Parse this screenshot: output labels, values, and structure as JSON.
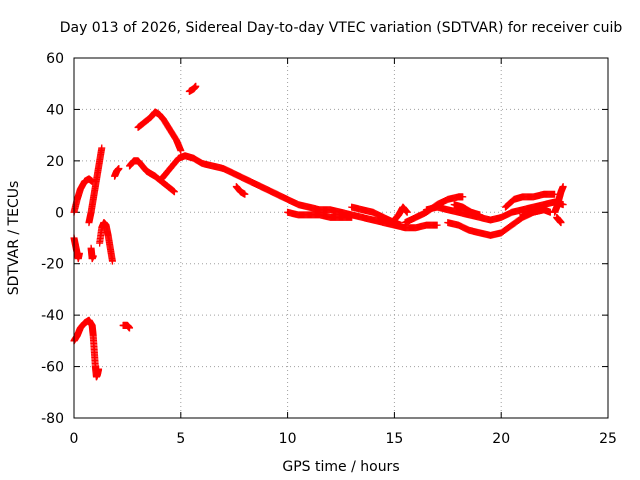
{
  "chart_data": {
    "type": "scatter",
    "title": "Day 013 of 2026, Sidereal Day-to-day VTEC variation (SDTVAR) for receiver cuib",
    "xlabel": "GPS time / hours",
    "ylabel": "SDTVAR / TECUs",
    "xlim": [
      0,
      25
    ],
    "ylim": [
      -80,
      60
    ],
    "xticks": [
      0,
      5,
      10,
      15,
      20,
      25
    ],
    "yticks": [
      -80,
      -60,
      -40,
      -20,
      0,
      20,
      40,
      60
    ],
    "grid": true,
    "marker": "plus",
    "series": [
      {
        "name": "SDTVAR",
        "color": "#ff0000",
        "segments": [
          [
            [
              0.0,
              0
            ],
            [
              0.15,
              5
            ],
            [
              0.3,
              9
            ],
            [
              0.5,
              12
            ],
            [
              0.7,
              13
            ],
            [
              0.85,
              12
            ]
          ],
          [
            [
              0.0,
              -10
            ],
            [
              0.1,
              -14
            ],
            [
              0.2,
              -18
            ],
            [
              0.25,
              -16
            ]
          ],
          [
            [
              0.0,
              -50
            ],
            [
              0.15,
              -48
            ],
            [
              0.3,
              -45
            ],
            [
              0.5,
              -43
            ],
            [
              0.7,
              -42
            ],
            [
              0.85,
              -44
            ],
            [
              0.9,
              -48
            ],
            [
              0.95,
              -54
            ],
            [
              1.0,
              -60
            ],
            [
              1.05,
              -64
            ],
            [
              1.1,
              -63
            ],
            [
              1.15,
              -61
            ]
          ],
          [
            [
              0.7,
              -4
            ],
            [
              0.8,
              0
            ],
            [
              0.9,
              5
            ],
            [
              1.0,
              10
            ],
            [
              1.1,
              15
            ],
            [
              1.2,
              20
            ],
            [
              1.3,
              25
            ]
          ],
          [
            [
              0.8,
              -14
            ],
            [
              0.85,
              -18
            ],
            [
              0.9,
              -17
            ]
          ],
          [
            [
              1.2,
              -12
            ],
            [
              1.3,
              -6
            ],
            [
              1.4,
              -4
            ],
            [
              1.5,
              -5
            ],
            [
              1.6,
              -9
            ],
            [
              1.7,
              -14
            ],
            [
              1.8,
              -19
            ]
          ],
          [
            [
              1.9,
              14
            ],
            [
              2.0,
              16
            ],
            [
              2.1,
              17
            ]
          ],
          [
            [
              2.3,
              -44
            ],
            [
              2.5,
              -44
            ],
            [
              2.6,
              -45
            ]
          ],
          [
            [
              2.6,
              18
            ],
            [
              2.8,
              20
            ],
            [
              3.0,
              20
            ],
            [
              3.2,
              18
            ],
            [
              3.4,
              16
            ],
            [
              3.6,
              15
            ],
            [
              3.8,
              14
            ],
            [
              4.1,
              12
            ],
            [
              4.4,
              10
            ],
            [
              4.7,
              8
            ]
          ],
          [
            [
              3.0,
              33
            ],
            [
              3.3,
              35
            ],
            [
              3.6,
              37
            ],
            [
              3.8,
              39
            ],
            [
              4.0,
              38
            ],
            [
              4.2,
              36
            ],
            [
              4.5,
              32
            ],
            [
              4.8,
              28
            ],
            [
              5.0,
              24
            ]
          ],
          [
            [
              4.1,
              13
            ],
            [
              4.3,
              15
            ],
            [
              4.6,
              18
            ],
            [
              4.9,
              21
            ],
            [
              5.2,
              22
            ],
            [
              5.6,
              21
            ],
            [
              6.0,
              19
            ],
            [
              6.5,
              18
            ],
            [
              7.0,
              17
            ],
            [
              7.5,
              15
            ],
            [
              8.0,
              13
            ],
            [
              8.5,
              11
            ],
            [
              9.0,
              9
            ],
            [
              9.5,
              7
            ],
            [
              10.0,
              5
            ],
            [
              10.5,
              3
            ],
            [
              11.0,
              2
            ],
            [
              11.5,
              1
            ],
            [
              12.0,
              1
            ],
            [
              12.5,
              0
            ],
            [
              13.0,
              -1
            ],
            [
              13.5,
              -2
            ],
            [
              14.0,
              -3
            ],
            [
              14.5,
              -4
            ],
            [
              15.0,
              -5
            ],
            [
              15.5,
              -6
            ],
            [
              16.0,
              -6
            ],
            [
              16.5,
              -5
            ],
            [
              17.0,
              -5
            ]
          ],
          [
            [
              5.4,
              47
            ],
            [
              5.6,
              48
            ],
            [
              5.7,
              49
            ]
          ],
          [
            [
              7.6,
              10
            ],
            [
              7.8,
              8
            ],
            [
              8.0,
              7
            ]
          ],
          [
            [
              10.0,
              0
            ],
            [
              10.5,
              -1
            ],
            [
              11.0,
              -1
            ],
            [
              11.5,
              -1
            ],
            [
              12.0,
              -2
            ],
            [
              12.5,
              -2
            ],
            [
              13.0,
              -2
            ]
          ],
          [
            [
              13.0,
              2
            ],
            [
              13.5,
              1
            ],
            [
              14.0,
              0
            ],
            [
              14.5,
              -2
            ],
            [
              15.0,
              -4
            ],
            [
              15.3,
              -5
            ]
          ],
          [
            [
              15.0,
              -3
            ],
            [
              15.2,
              -1
            ],
            [
              15.4,
              2
            ],
            [
              15.6,
              0
            ]
          ],
          [
            [
              15.5,
              -4
            ],
            [
              16.0,
              -2
            ],
            [
              16.5,
              0
            ],
            [
              17.0,
              3
            ],
            [
              17.5,
              5
            ],
            [
              18.0,
              6
            ],
            [
              18.2,
              6
            ]
          ],
          [
            [
              16.5,
              1
            ],
            [
              17.0,
              2
            ],
            [
              17.5,
              1
            ],
            [
              18.0,
              0
            ],
            [
              18.5,
              -1
            ],
            [
              19.0,
              -2
            ],
            [
              19.5,
              -3
            ],
            [
              20.0,
              -2
            ],
            [
              20.5,
              0
            ],
            [
              21.0,
              1
            ],
            [
              21.5,
              2
            ],
            [
              22.0,
              3
            ],
            [
              22.5,
              4
            ],
            [
              22.9,
              3
            ]
          ],
          [
            [
              17.5,
              -4
            ],
            [
              18.0,
              -5
            ],
            [
              18.5,
              -7
            ],
            [
              19.0,
              -8
            ],
            [
              19.5,
              -9
            ],
            [
              20.0,
              -8
            ],
            [
              20.5,
              -5
            ],
            [
              21.0,
              -2
            ],
            [
              21.5,
              0
            ],
            [
              22.0,
              1
            ]
          ],
          [
            [
              17.8,
              3
            ],
            [
              18.2,
              2
            ],
            [
              18.6,
              0
            ],
            [
              19.0,
              -1
            ]
          ],
          [
            [
              20.2,
              2
            ],
            [
              20.6,
              5
            ],
            [
              21.0,
              6
            ],
            [
              21.5,
              6
            ],
            [
              22.0,
              7
            ],
            [
              22.5,
              7
            ]
          ],
          [
            [
              21.0,
              -1
            ],
            [
              21.5,
              0
            ],
            [
              22.0,
              1
            ],
            [
              22.3,
              0
            ]
          ],
          [
            [
              22.5,
              0
            ],
            [
              22.6,
              2
            ],
            [
              22.7,
              5
            ],
            [
              22.8,
              8
            ],
            [
              22.9,
              10
            ]
          ],
          [
            [
              22.6,
              -2
            ],
            [
              22.7,
              -3
            ],
            [
              22.8,
              -4
            ]
          ]
        ]
      }
    ]
  }
}
